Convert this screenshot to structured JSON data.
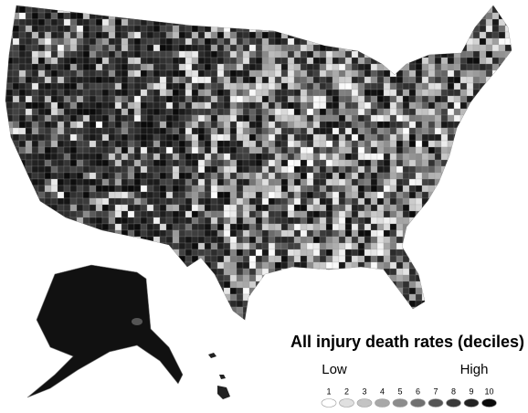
{
  "legend": {
    "title": "All injury death rates (deciles)",
    "low_label": "Low",
    "high_label": "High",
    "deciles": [
      1,
      2,
      3,
      4,
      5,
      6,
      7,
      8,
      9,
      10
    ],
    "colors": [
      "#ffffff",
      "#e0e0e0",
      "#c4c4c4",
      "#a8a8a8",
      "#8c8c8c",
      "#707070",
      "#555555",
      "#3a3a3a",
      "#222222",
      "#0a0a0a"
    ]
  }
}
